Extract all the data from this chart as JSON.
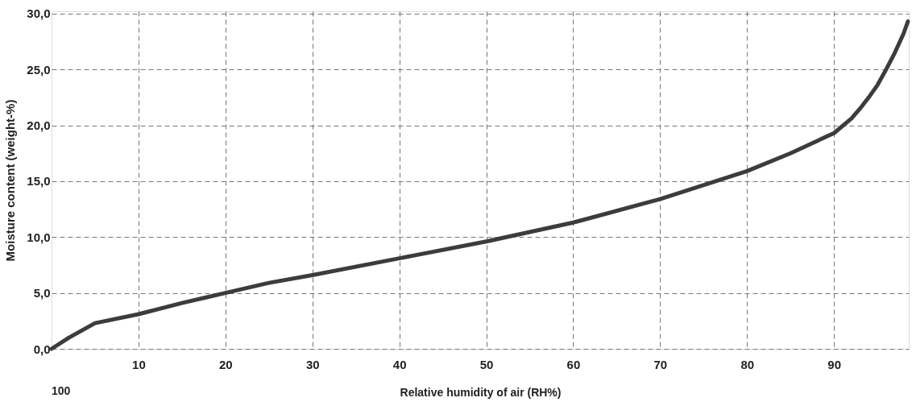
{
  "chart_data": {
    "type": "line",
    "xlabel": "Relative humidity of air (RH%)",
    "ylabel": "Moisture content (weight-%)",
    "x": [
      0,
      2,
      5,
      10,
      15,
      20,
      25,
      30,
      40,
      50,
      60,
      70,
      80,
      85,
      90,
      92,
      93,
      94,
      95,
      96,
      97,
      98,
      98.5
    ],
    "series": [
      {
        "color": "#3c3c3c",
        "values": [
          0,
          1.0,
          2.3,
          3.1,
          4.1,
          5.0,
          5.9,
          6.6,
          8.1,
          9.6,
          11.3,
          13.4,
          15.9,
          17.5,
          19.3,
          20.6,
          21.5,
          22.5,
          23.6,
          25.0,
          26.5,
          28.2,
          29.3
        ]
      }
    ],
    "xlim": [
      0,
      98.6
    ],
    "ylim": [
      0,
      30.2
    ],
    "xticks": [
      10,
      20,
      30,
      40,
      50,
      60,
      70,
      80,
      90
    ],
    "yticks": [
      {
        "value": 0,
        "label": "0,0"
      },
      {
        "value": 5,
        "label": "5,0"
      },
      {
        "value": 10,
        "label": "10,0"
      },
      {
        "value": 15,
        "label": "15,0"
      },
      {
        "value": 20,
        "label": "20,0"
      },
      {
        "value": 25,
        "label": "25,0"
      },
      {
        "value": 30,
        "label": "30,0"
      }
    ],
    "grid": true,
    "line_style": "solid",
    "marker": "none",
    "annotations": [
      "100"
    ]
  }
}
